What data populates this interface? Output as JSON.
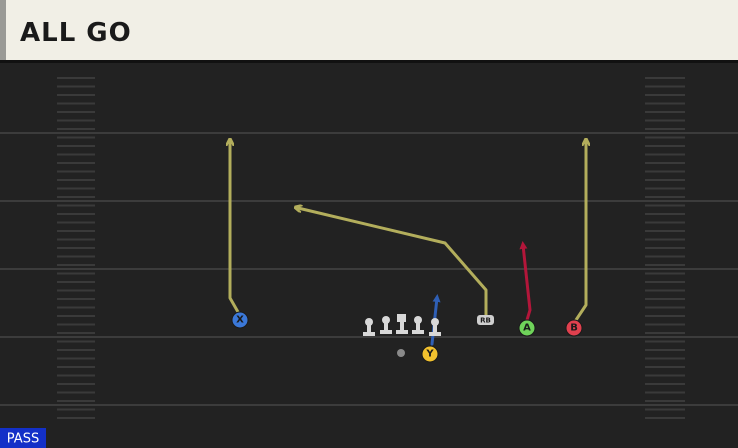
{
  "header": {
    "title": "ALL GO"
  },
  "players": [
    {
      "label": "X"
    },
    {
      "label": "Y"
    },
    {
      "label": "A"
    },
    {
      "label": "B"
    },
    {
      "label": "RB"
    }
  ],
  "footer": {
    "play_type": "PASS"
  }
}
